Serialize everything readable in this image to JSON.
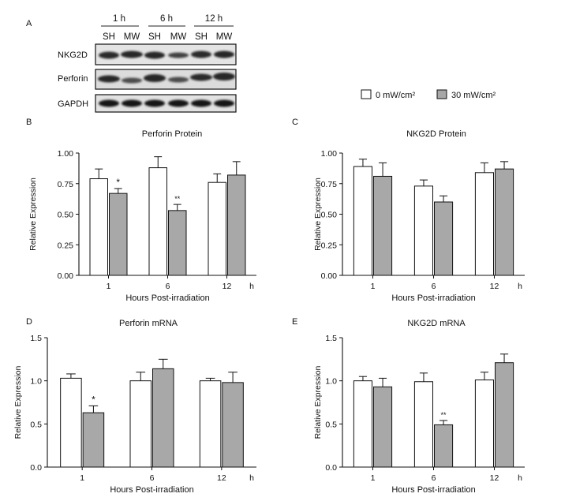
{
  "panel_a": {
    "label": "A",
    "timepoints": [
      "1 h",
      "6 h",
      "12 h"
    ],
    "lane_labels": [
      "SH",
      "MW",
      "SH",
      "MW",
      "SH",
      "MW"
    ],
    "blots": [
      "NKG2D",
      "Perforin",
      "GAPDH"
    ]
  },
  "legend": {
    "entries": [
      {
        "label": "0 mW/cm²",
        "color": "#ffffff"
      },
      {
        "label": "30 mW/cm²",
        "color": "#a8a8a8"
      }
    ]
  },
  "chart_data": [
    {
      "panel": "B",
      "type": "bar",
      "title": "Perforin Protein",
      "xlabel": "Hours Post-irradiation",
      "ylabel": "Relative Expression",
      "x_unit": "h",
      "categories": [
        "1",
        "6",
        "12"
      ],
      "ylim": [
        0,
        1.0
      ],
      "yticks": [
        "0.00",
        "0.25",
        "0.50",
        "0.75",
        "1.00"
      ],
      "series": [
        {
          "name": "0 mW/cm²",
          "values": [
            0.79,
            0.88,
            0.76
          ],
          "errors": [
            0.08,
            0.09,
            0.07
          ]
        },
        {
          "name": "30 mW/cm²",
          "values": [
            0.67,
            0.53,
            0.82
          ],
          "errors": [
            0.04,
            0.05,
            0.11
          ]
        }
      ],
      "annotations": [
        {
          "category": "1",
          "series": 1,
          "text": "*"
        },
        {
          "category": "6",
          "series": 1,
          "text": "**"
        }
      ]
    },
    {
      "panel": "C",
      "type": "bar",
      "title": "NKG2D Protein",
      "xlabel": "Hours Post-irradiation",
      "ylabel": "Relative Expression",
      "x_unit": "h",
      "categories": [
        "1",
        "6",
        "12"
      ],
      "ylim": [
        0,
        1.0
      ],
      "yticks": [
        "0.00",
        "0.25",
        "0.50",
        "0.75",
        "1.00"
      ],
      "series": [
        {
          "name": "0 mW/cm²",
          "values": [
            0.89,
            0.73,
            0.84
          ],
          "errors": [
            0.06,
            0.05,
            0.08
          ]
        },
        {
          "name": "30 mW/cm²",
          "values": [
            0.81,
            0.6,
            0.87
          ],
          "errors": [
            0.11,
            0.05,
            0.06
          ]
        }
      ],
      "annotations": []
    },
    {
      "panel": "D",
      "type": "bar",
      "title": "Perforin mRNA",
      "xlabel": "Hours Post-irradiation",
      "ylabel": "Relative Expression",
      "x_unit": "h",
      "categories": [
        "1",
        "6",
        "12"
      ],
      "ylim": [
        0,
        1.5
      ],
      "yticks": [
        "0.0",
        "0.5",
        "1.0",
        "1.5"
      ],
      "series": [
        {
          "name": "0 mW/cm²",
          "values": [
            1.03,
            1.0,
            1.0
          ],
          "errors": [
            0.05,
            0.1,
            0.03
          ]
        },
        {
          "name": "30 mW/cm²",
          "values": [
            0.63,
            1.14,
            0.98
          ],
          "errors": [
            0.08,
            0.11,
            0.12
          ]
        }
      ],
      "annotations": [
        {
          "category": "1",
          "series": 1,
          "text": "*"
        }
      ]
    },
    {
      "panel": "E",
      "type": "bar",
      "title": "NKG2D mRNA",
      "xlabel": "Hours Post-irradiation",
      "ylabel": "Relative Expression",
      "x_unit": "h",
      "categories": [
        "1",
        "6",
        "12"
      ],
      "ylim": [
        0,
        1.5
      ],
      "yticks": [
        "0.0",
        "0.5",
        "1.0",
        "1.5"
      ],
      "series": [
        {
          "name": "0 mW/cm²",
          "values": [
            1.0,
            0.99,
            1.01
          ],
          "errors": [
            0.05,
            0.1,
            0.09
          ]
        },
        {
          "name": "30 mW/cm²",
          "values": [
            0.93,
            0.49,
            1.21
          ],
          "errors": [
            0.1,
            0.05,
            0.1
          ]
        }
      ],
      "annotations": [
        {
          "category": "6",
          "series": 1,
          "text": "**"
        }
      ]
    }
  ]
}
